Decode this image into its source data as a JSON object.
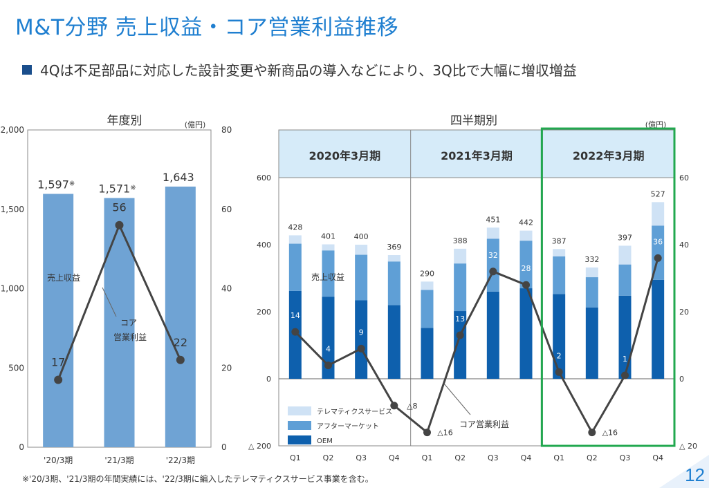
{
  "title": "M&T分野 売上収益・コア営業利益推移",
  "subtitle": "4Qは不足部品に対応した設計変更や新商品の導入などにより、3Q比で大幅に増収増益",
  "footnote": "※'20/3期、'21/3期の年間実績には、'22/3期に編入したテレマティクスサービス事業を含む。",
  "page_number": "12",
  "colors": {
    "bar_annual": "#6fa3d4",
    "oem": "#0e60ad",
    "aftermarket": "#5f9fd6",
    "telematics": "#cfe2f5",
    "line": "#444444",
    "highlight": "#21a84f",
    "period_header": "#d6ebf9"
  },
  "chart_data": [
    {
      "type": "bar",
      "title": "年度別",
      "unit": "(億円)",
      "categories": [
        "'20/3期",
        "'21/3期",
        "'22/3期"
      ],
      "series": [
        {
          "name": "売上収益",
          "values": [
            1597,
            1571,
            1643
          ],
          "labels": [
            "1,597",
            "1,571",
            "1,643"
          ],
          "label_marks": [
            "※",
            "※",
            ""
          ],
          "axis": "left"
        },
        {
          "name": "コア営業利益",
          "values": [
            17,
            56,
            22
          ],
          "labels": [
            "17",
            "56",
            "22"
          ],
          "axis": "right",
          "render": "line"
        }
      ],
      "y_left": {
        "ylim": [
          0,
          2000
        ],
        "ticks": [
          0,
          500,
          1000,
          1500,
          2000
        ],
        "tick_labels": [
          "0",
          "500",
          "1,000",
          "1,500",
          "2,000"
        ]
      },
      "y_right": {
        "ylim": [
          0,
          80
        ],
        "ticks": [
          0,
          20,
          40,
          60,
          80
        ],
        "tick_labels": [
          "0",
          "20",
          "40",
          "60",
          "80"
        ]
      },
      "annotations": {
        "sales": "売上収益",
        "profit_line1": "コア",
        "profit_line2": "営業利益"
      }
    },
    {
      "type": "bar",
      "stacked": true,
      "title": "四半期別",
      "unit": "(億円)",
      "periods": [
        "2020年3月期",
        "2021年3月期",
        "2022年3月期"
      ],
      "highlight_period": "2022年3月期",
      "categories": [
        "Q1",
        "Q2",
        "Q3",
        "Q4",
        "Q1",
        "Q2",
        "Q3",
        "Q4",
        "Q1",
        "Q2",
        "Q3",
        "Q4"
      ],
      "series": [
        {
          "name": "OEM",
          "values": [
            262,
            245,
            234,
            220,
            152,
            202,
            260,
            270,
            253,
            213,
            248,
            295
          ]
        },
        {
          "name": "アフターマーケット",
          "values": [
            141,
            138,
            136,
            130,
            113,
            142,
            158,
            142,
            112,
            90,
            93,
            162
          ]
        },
        {
          "name": "テレマティクスサービス",
          "values": [
            25,
            18,
            30,
            19,
            25,
            44,
            33,
            30,
            22,
            29,
            56,
            70
          ]
        }
      ],
      "totals": [
        428,
        401,
        400,
        369,
        290,
        388,
        451,
        442,
        387,
        332,
        397,
        527
      ],
      "profit": {
        "name": "コア営業利益",
        "values": [
          14,
          4,
          9,
          -8,
          -16,
          13,
          32,
          28,
          2,
          -16,
          1,
          36
        ],
        "labels": [
          "14",
          "4",
          "9",
          "△8",
          "△16",
          "13",
          "32",
          "28",
          "2",
          "△16",
          "1",
          "36"
        ]
      },
      "y_left": {
        "ylim": [
          -200,
          600
        ],
        "ticks": [
          -200,
          0,
          200,
          400,
          600
        ],
        "tick_labels": [
          "△ 200",
          "0",
          "200",
          "400",
          "600"
        ]
      },
      "y_right": {
        "ylim": [
          -20,
          60
        ],
        "ticks": [
          -20,
          0,
          20,
          40,
          60
        ],
        "tick_labels": [
          "△ 20",
          "0",
          "20",
          "40",
          "60"
        ]
      },
      "annotations": {
        "sales": "売上収益",
        "profit": "コア営業利益"
      },
      "legend": [
        "テレマティクスサービス",
        "アフターマーケット",
        "OEM"
      ],
      "legend_position": "bottom-left"
    }
  ]
}
